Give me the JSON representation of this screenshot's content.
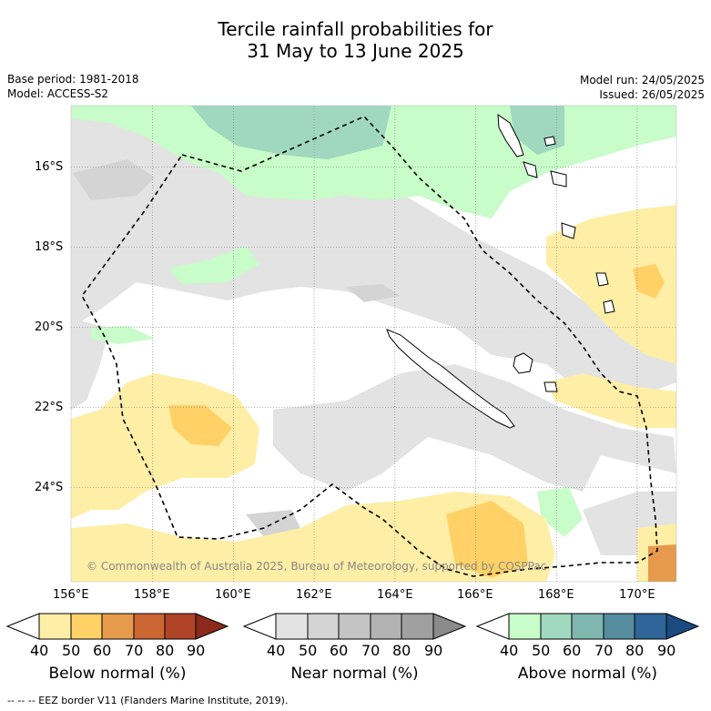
{
  "title": {
    "line1": "Tercile rainfall probabilities for",
    "line2": "31 May to 13 June 2025"
  },
  "meta": {
    "base_period": "Base period: 1981-2018",
    "model": "Model: ACCESS-S2",
    "model_run": "Model run: 24/05/2025",
    "issued": "Issued: 26/05/2025"
  },
  "map": {
    "lon_labels": [
      "156°E",
      "158°E",
      "160°E",
      "162°E",
      "164°E",
      "166°E",
      "168°E",
      "170°E"
    ],
    "lat_labels": [
      "16°S",
      "18°S",
      "20°S",
      "22°S",
      "24°S"
    ],
    "copyright": "© Commonwealth of Australia 2025, Bureau of Meteorology, supported by COSPPac",
    "colors": {
      "ocean": "#ffffff",
      "near_normal": "#e3e3e3",
      "near_normal_dark": "#d4d4d4",
      "below_50": "#ffeea6",
      "below_60": "#ffd166",
      "above_50": "#c8fcc8",
      "above_60": "#9fd8bf",
      "eez_border": "#000000"
    }
  },
  "colorbars": [
    {
      "name": "below",
      "label": "Below normal (%)",
      "ticks": [
        "40",
        "50",
        "60",
        "70",
        "80",
        "90"
      ],
      "colors": [
        "#ffeea6",
        "#ffd166",
        "#e69a4c",
        "#cc6633",
        "#b04426",
        "#8b2a1a"
      ]
    },
    {
      "name": "near",
      "label": "Near normal (%)",
      "ticks": [
        "40",
        "50",
        "60",
        "70",
        "80",
        "90"
      ],
      "colors": [
        "#e3e3e3",
        "#d4d4d4",
        "#c4c4c4",
        "#b3b3b3",
        "#a0a0a0",
        "#8a8a8a"
      ]
    },
    {
      "name": "above",
      "label": "Above normal (%)",
      "ticks": [
        "40",
        "50",
        "60",
        "70",
        "80",
        "90"
      ],
      "colors": [
        "#c8fcc8",
        "#a0d9bf",
        "#7fb7b0",
        "#568ea0",
        "#2f6598",
        "#1a4a80"
      ]
    }
  ],
  "footnote": "--  --  -- EEZ border V11 (Flanders Marine Institute, 2019)."
}
